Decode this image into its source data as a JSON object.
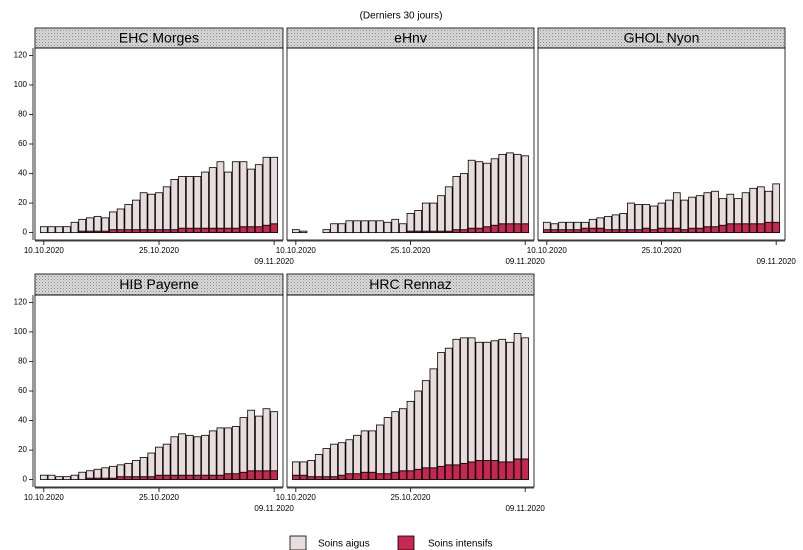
{
  "header": {
    "subtitle": "(Derniers 30 jours)"
  },
  "chart_data": [
    {
      "type": "bar",
      "stacked": true,
      "title": "EHC Morges",
      "categories": [
        "10.10.2020",
        null,
        null,
        null,
        null,
        null,
        null,
        null,
        null,
        null,
        null,
        null,
        null,
        null,
        null,
        "25.10.2020",
        null,
        null,
        null,
        null,
        null,
        null,
        null,
        null,
        null,
        null,
        null,
        null,
        null,
        null,
        "09.11.2020"
      ],
      "series": [
        {
          "name": "Soins aigus",
          "color": "#e8dcdc",
          "values": [
            4,
            4,
            4,
            4,
            7,
            8,
            9,
            10,
            9,
            12,
            14,
            17,
            20,
            25,
            24,
            25,
            29,
            34,
            35,
            35,
            35,
            38,
            41,
            45,
            38,
            45,
            44,
            39,
            42,
            46,
            45
          ]
        },
        {
          "name": "Soins intensifs",
          "color": "#c8284f",
          "values": [
            0,
            0,
            0,
            0,
            0,
            1,
            1,
            1,
            1,
            2,
            2,
            2,
            2,
            2,
            2,
            2,
            2,
            2,
            3,
            3,
            3,
            3,
            3,
            3,
            3,
            3,
            4,
            4,
            4,
            5,
            6
          ]
        }
      ],
      "ylim": [
        -5,
        125
      ],
      "yticks": [
        0,
        20,
        40,
        60,
        80,
        100,
        120
      ]
    },
    {
      "type": "bar",
      "stacked": true,
      "title": "eHnv",
      "categories": [
        "10.10.2020",
        null,
        null,
        null,
        null,
        null,
        null,
        null,
        null,
        null,
        null,
        null,
        null,
        null,
        null,
        "25.10.2020",
        null,
        null,
        null,
        null,
        null,
        null,
        null,
        null,
        null,
        null,
        null,
        null,
        null,
        null,
        "09.11.2020"
      ],
      "series": [
        {
          "name": "Soins aigus",
          "color": "#e8dcdc",
          "values": [
            2,
            1,
            0,
            0,
            2,
            6,
            6,
            8,
            8,
            8,
            8,
            8,
            7,
            9,
            6,
            12,
            14,
            19,
            19,
            24,
            30,
            36,
            38,
            46,
            45,
            43,
            45,
            47,
            48,
            47,
            46
          ]
        },
        {
          "name": "Soins intensifs",
          "color": "#c8284f",
          "values": [
            0,
            0,
            0,
            0,
            0,
            0,
            0,
            0,
            0,
            0,
            0,
            0,
            0,
            0,
            0,
            1,
            1,
            1,
            1,
            1,
            1,
            2,
            2,
            3,
            3,
            4,
            5,
            6,
            6,
            6,
            6
          ]
        }
      ],
      "ylim": [
        -5,
        125
      ]
    },
    {
      "type": "bar",
      "stacked": true,
      "title": "GHOL Nyon",
      "categories": [
        "10.10.2020",
        null,
        null,
        null,
        null,
        null,
        null,
        null,
        null,
        null,
        null,
        null,
        null,
        null,
        null,
        "25.10.2020",
        null,
        null,
        null,
        null,
        null,
        null,
        null,
        null,
        null,
        null,
        null,
        null,
        null,
        null,
        "09.11.2020"
      ],
      "series": [
        {
          "name": "Soins aigus",
          "color": "#e8dcdc",
          "values": [
            5,
            4,
            5,
            5,
            5,
            4,
            6,
            7,
            9,
            10,
            11,
            18,
            17,
            16,
            16,
            17,
            19,
            24,
            20,
            21,
            22,
            23,
            24,
            18,
            20,
            17,
            21,
            24,
            25,
            21,
            26
          ]
        },
        {
          "name": "Soins intensifs",
          "color": "#c8284f",
          "values": [
            2,
            2,
            2,
            2,
            2,
            3,
            3,
            3,
            2,
            2,
            2,
            2,
            2,
            3,
            2,
            3,
            3,
            3,
            2,
            3,
            3,
            4,
            4,
            5,
            6,
            6,
            6,
            6,
            6,
            7,
            7
          ]
        }
      ],
      "ylim": [
        -5,
        125
      ]
    },
    {
      "type": "bar",
      "stacked": true,
      "title": "HIB Payerne",
      "categories": [
        "10.10.2020",
        null,
        null,
        null,
        null,
        null,
        null,
        null,
        null,
        null,
        null,
        null,
        null,
        null,
        null,
        "25.10.2020",
        null,
        null,
        null,
        null,
        null,
        null,
        null,
        null,
        null,
        null,
        null,
        null,
        null,
        null,
        "09.11.2020"
      ],
      "series": [
        {
          "name": "Soins aigus",
          "color": "#e8dcdc",
          "values": [
            3,
            3,
            2,
            2,
            3,
            5,
            5,
            6,
            7,
            8,
            8,
            9,
            11,
            13,
            16,
            19,
            21,
            26,
            28,
            27,
            26,
            27,
            30,
            32,
            31,
            32,
            37,
            41,
            37,
            42,
            40
          ]
        },
        {
          "name": "Soins intensifs",
          "color": "#c8284f",
          "values": [
            0,
            0,
            0,
            0,
            0,
            0,
            1,
            1,
            1,
            1,
            2,
            2,
            2,
            2,
            2,
            3,
            3,
            3,
            3,
            3,
            3,
            3,
            3,
            3,
            4,
            4,
            5,
            6,
            6,
            6,
            6
          ]
        }
      ],
      "ylim": [
        -5,
        125
      ],
      "yticks": [
        0,
        20,
        40,
        60,
        80,
        100,
        120
      ]
    },
    {
      "type": "bar",
      "stacked": true,
      "title": "HRC Rennaz",
      "categories": [
        "10.10.2020",
        null,
        null,
        null,
        null,
        null,
        null,
        null,
        null,
        null,
        null,
        null,
        null,
        null,
        null,
        "25.10.2020",
        null,
        null,
        null,
        null,
        null,
        null,
        null,
        null,
        null,
        null,
        null,
        null,
        null,
        null,
        "09.11.2020"
      ],
      "series": [
        {
          "name": "Soins aigus",
          "color": "#e8dcdc",
          "values": [
            9,
            9,
            11,
            15,
            19,
            22,
            22,
            23,
            26,
            28,
            28,
            33,
            38,
            41,
            42,
            47,
            53,
            59,
            67,
            77,
            79,
            85,
            85,
            84,
            80,
            80,
            81,
            83,
            81,
            85,
            82
          ]
        },
        {
          "name": "Soins intensifs",
          "color": "#c8284f",
          "values": [
            3,
            3,
            2,
            2,
            2,
            2,
            3,
            4,
            4,
            5,
            5,
            4,
            4,
            5,
            6,
            6,
            7,
            8,
            8,
            9,
            10,
            10,
            11,
            12,
            13,
            13,
            13,
            12,
            12,
            14,
            14
          ]
        }
      ],
      "ylim": [
        -5,
        125
      ]
    }
  ]
}
